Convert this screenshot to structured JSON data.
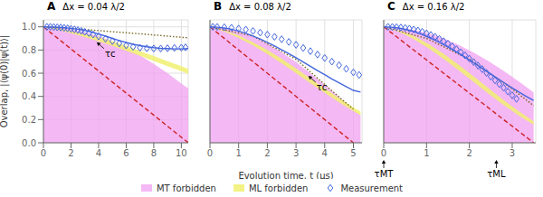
{
  "chart_data": [
    {
      "type": "line",
      "title": "A",
      "subtitle": "Δx = 0.04 λ/2",
      "ylabel": "Overlap, |⟨ψ(0)|ψ(t)⟩|",
      "xlim": [
        0,
        10.5
      ],
      "xticks": [
        0,
        2,
        4,
        6,
        8,
        10
      ],
      "ylim": [
        0,
        1.06
      ],
      "yticks": [
        {
          "value": 0.0,
          "label": "0.0"
        },
        {
          "value": 0.2,
          "label": "0.2"
        },
        {
          "value": 0.4,
          "label": "0.4"
        },
        {
          "value": 0.6,
          "label": "0.6"
        },
        {
          "value": 0.8,
          "label": "0.8"
        },
        {
          "value": 1.0,
          "label": "1.0"
        }
      ],
      "grid": true,
      "legend": "bottom",
      "annotations": [
        {
          "text": "τc",
          "x": 3.8,
          "y": 0.875
        }
      ],
      "series": [
        {
          "name": "MT forbidden",
          "type": "area",
          "color": "#F0A0F0",
          "x": [
            0.0,
            1.0,
            2.0,
            3.0,
            4.0,
            5.0,
            6.0,
            7.0,
            8.0,
            9.0,
            10.0,
            10.5
          ],
          "values": [
            1.0,
            0.995,
            0.98,
            0.955,
            0.92,
            0.875,
            0.82,
            0.755,
            0.68,
            0.6,
            0.51,
            0.47
          ]
        },
        {
          "name": "ML forbidden",
          "type": "band",
          "color": "#F0F070",
          "x": [
            0.0,
            1.0,
            2.0,
            3.0,
            4.0,
            5.0,
            6.0,
            7.0,
            8.0,
            9.0,
            10.0,
            10.5
          ],
          "lower": [
            1.0,
            0.975,
            0.945,
            0.912,
            0.875,
            0.836,
            0.794,
            0.75,
            0.705,
            0.66,
            0.617,
            0.595
          ],
          "upper": [
            1.0,
            0.985,
            0.965,
            0.94,
            0.91,
            0.875,
            0.835,
            0.792,
            0.748,
            0.703,
            0.66,
            0.638
          ]
        },
        {
          "type": "line",
          "color": "#CC2222",
          "line_style": "dashed",
          "x": [
            0.0,
            10.5
          ],
          "values": [
            1.0,
            0.0
          ]
        },
        {
          "type": "line",
          "color": "#776622",
          "line_style": "dotted",
          "x": [
            0.0,
            3.5,
            7.0,
            10.5
          ],
          "values": [
            1.0,
            0.972,
            0.94,
            0.905
          ]
        },
        {
          "type": "line",
          "color": "#4466DD",
          "line_style": "solid",
          "x": [
            0.0,
            0.5,
            1.0,
            1.5,
            2.0,
            2.5,
            3.0,
            3.5,
            4.0,
            4.5,
            5.0,
            5.5,
            6.0,
            6.5,
            7.0,
            7.5,
            8.0,
            8.5,
            9.0,
            9.5,
            10.0,
            10.5
          ],
          "values": [
            1.0,
            0.999,
            0.997,
            0.993,
            0.987,
            0.979,
            0.969,
            0.955,
            0.938,
            0.92,
            0.9,
            0.882,
            0.865,
            0.85,
            0.838,
            0.828,
            0.82,
            0.815,
            0.812,
            0.81,
            0.81,
            0.812
          ]
        },
        {
          "name": "Measurement",
          "type": "scatter",
          "color": "#4466DD",
          "marker": "diamond",
          "x": [
            0.25,
            0.5,
            0.75,
            1.0,
            1.25,
            1.5,
            1.75,
            2.0,
            2.25,
            2.5,
            2.75,
            3.0,
            3.3,
            3.6,
            4.0,
            4.5,
            5.0,
            5.5,
            6.0,
            6.5,
            7.0,
            7.5,
            8.0,
            8.5,
            9.0,
            9.5,
            10.0,
            10.3
          ],
          "values": [
            1.0,
            1.0,
            0.998,
            0.996,
            0.994,
            0.991,
            0.987,
            0.983,
            0.978,
            0.972,
            0.965,
            0.957,
            0.946,
            0.934,
            0.918,
            0.898,
            0.877,
            0.857,
            0.84,
            0.828,
            0.82,
            0.815,
            0.813,
            0.813,
            0.815,
            0.818,
            0.82,
            0.823
          ]
        }
      ]
    },
    {
      "type": "line",
      "title": "B",
      "subtitle": "Δx = 0.08 λ/2",
      "xlabel": "Evolution time, t (μs)",
      "xlim": [
        0,
        5.3
      ],
      "xticks": [
        0,
        1,
        2,
        3,
        4,
        5
      ],
      "ylim": [
        0,
        1.06
      ],
      "yticks": [
        0.0,
        0.2,
        0.4,
        0.6,
        0.8,
        1.0
      ],
      "grid": true,
      "tick_labels": "x",
      "annotations": [
        {
          "text": "τc",
          "x": 3.4,
          "y": 0.585
        }
      ],
      "series": [
        {
          "type": "area",
          "color": "#F0A0F0",
          "x": [
            0.0,
            0.5,
            1.0,
            1.5,
            2.0,
            2.5,
            3.0,
            3.5,
            4.0,
            4.5,
            5.0,
            5.25
          ],
          "values": [
            1.0,
            0.99,
            0.96,
            0.915,
            0.855,
            0.78,
            0.695,
            0.6,
            0.5,
            0.395,
            0.29,
            0.235
          ]
        },
        {
          "type": "band",
          "color": "#F0F070",
          "x": [
            0.0,
            0.5,
            1.0,
            1.5,
            2.0,
            2.5,
            3.0,
            3.5,
            4.0,
            4.5,
            5.0,
            5.25
          ],
          "lower": [
            1.0,
            0.96,
            0.905,
            0.84,
            0.765,
            0.685,
            0.6,
            0.514,
            0.43,
            0.348,
            0.272,
            0.237
          ],
          "upper": [
            1.0,
            0.97,
            0.925,
            0.868,
            0.8,
            0.724,
            0.642,
            0.556,
            0.47,
            0.385,
            0.305,
            0.268
          ]
        },
        {
          "type": "line",
          "color": "#CC2222",
          "line_style": "dashed",
          "x": [
            0.0,
            5.0
          ],
          "values": [
            1.0,
            0.0
          ]
        },
        {
          "type": "line",
          "color": "#776622",
          "line_style": "dotted",
          "x": [
            0.0,
            1.5,
            3.0,
            4.5,
            5.0
          ],
          "values": [
            1.0,
            0.92,
            0.72,
            0.395,
            0.29
          ]
        },
        {
          "type": "line",
          "color": "#4466DD",
          "line_style": "solid",
          "x": [
            0.0,
            0.25,
            0.5,
            0.75,
            1.0,
            1.25,
            1.5,
            1.75,
            2.0,
            2.25,
            2.5,
            2.75,
            3.0,
            3.25,
            3.5,
            3.75,
            4.0,
            4.25,
            4.5,
            4.75,
            5.0,
            5.25
          ],
          "values": [
            1.0,
            0.997,
            0.99,
            0.979,
            0.963,
            0.944,
            0.921,
            0.895,
            0.866,
            0.835,
            0.802,
            0.768,
            0.733,
            0.697,
            0.66,
            0.623,
            0.587,
            0.551,
            0.517,
            0.484,
            0.452,
            0.437
          ]
        },
        {
          "type": "scatter",
          "color": "#4466DD",
          "marker": "diamond",
          "x": [
            0.1,
            0.25,
            0.5,
            0.75,
            1.0,
            1.25,
            1.5,
            1.75,
            2.0,
            2.25,
            2.5,
            2.75,
            3.0,
            3.25,
            3.5,
            3.75,
            4.0,
            4.25,
            4.5,
            4.75,
            5.0,
            5.2
          ],
          "values": [
            1.0,
            0.999,
            0.997,
            0.992,
            0.985,
            0.976,
            0.964,
            0.95,
            0.933,
            0.914,
            0.893,
            0.87,
            0.845,
            0.818,
            0.79,
            0.761,
            0.731,
            0.7,
            0.669,
            0.638,
            0.607,
            0.585
          ]
        }
      ]
    },
    {
      "type": "line",
      "title": "C",
      "subtitle": "Δx = 0.16 λ/2",
      "xlim": [
        0,
        3.55
      ],
      "xticks": [
        0,
        1,
        2,
        3
      ],
      "ylim": [
        0,
        1.06
      ],
      "yticks": [
        0.0,
        0.2,
        0.4,
        0.6,
        0.8,
        1.0
      ],
      "grid": true,
      "tick_labels": "x",
      "annotations": [
        {
          "text": "τMT",
          "x": 0.0,
          "y": 0
        },
        {
          "text": "τML",
          "x": 2.63,
          "y": 0
        }
      ],
      "series": [
        {
          "type": "area",
          "color": "#F0A0F0",
          "x": [
            0.0,
            0.35,
            0.7,
            1.05,
            1.4,
            1.75,
            2.1,
            2.45,
            2.8,
            3.15,
            3.5
          ],
          "values": [
            1.0,
            0.994,
            0.975,
            0.944,
            0.9,
            0.844,
            0.778,
            0.703,
            0.62,
            0.53,
            0.435
          ]
        },
        {
          "type": "band",
          "color": "#F0F070",
          "x": [
            0.0,
            0.35,
            0.7,
            1.05,
            1.4,
            1.75,
            2.1,
            2.45,
            2.8,
            3.15,
            3.5
          ],
          "lower": [
            1.0,
            0.958,
            0.895,
            0.815,
            0.723,
            0.625,
            0.524,
            0.423,
            0.326,
            0.236,
            0.156
          ],
          "upper": [
            1.0,
            0.971,
            0.921,
            0.852,
            0.768,
            0.673,
            0.573,
            0.47,
            0.368,
            0.272,
            0.185
          ]
        },
        {
          "type": "line",
          "color": "#CC2222",
          "line_style": "dashed",
          "x": [
            0.0,
            3.5
          ],
          "values": [
            1.0,
            0.0
          ]
        },
        {
          "type": "line",
          "color": "#776622",
          "line_style": "dotted",
          "x": [
            0.0,
            1.0,
            2.0,
            3.0,
            3.5
          ],
          "values": [
            1.0,
            0.9,
            0.72,
            0.465,
            0.32
          ]
        },
        {
          "type": "line",
          "color": "#4466DD",
          "line_style": "solid",
          "x": [
            0.0,
            0.175,
            0.35,
            0.525,
            0.7,
            0.875,
            1.05,
            1.225,
            1.4,
            1.575,
            1.75,
            1.925,
            2.1,
            2.275,
            2.45,
            2.625,
            2.8,
            2.975,
            3.15,
            3.325,
            3.5
          ],
          "values": [
            1.0,
            0.997,
            0.99,
            0.977,
            0.959,
            0.937,
            0.91,
            0.88,
            0.846,
            0.81,
            0.772,
            0.732,
            0.69,
            0.648,
            0.605,
            0.562,
            0.52,
            0.479,
            0.439,
            0.401,
            0.365
          ]
        },
        {
          "type": "scatter",
          "color": "#4466DD",
          "marker": "diamond",
          "x": [
            0.1,
            0.2,
            0.3,
            0.4,
            0.5,
            0.6,
            0.7,
            0.8,
            0.9,
            1.0,
            1.1,
            1.2,
            1.3,
            1.4,
            1.5,
            1.6,
            1.7,
            1.8,
            1.9,
            2.0,
            2.1,
            2.2,
            2.3,
            2.4,
            2.5,
            2.6,
            2.7,
            2.8,
            2.9,
            3.0,
            3.1
          ],
          "values": [
            1.0,
            0.999,
            0.997,
            0.994,
            0.99,
            0.984,
            0.977,
            0.968,
            0.957,
            0.944,
            0.93,
            0.914,
            0.896,
            0.876,
            0.855,
            0.832,
            0.807,
            0.781,
            0.754,
            0.726,
            0.696,
            0.666,
            0.635,
            0.603,
            0.571,
            0.539,
            0.506,
            0.474,
            0.442,
            0.41,
            0.379
          ]
        }
      ]
    }
  ]
}
